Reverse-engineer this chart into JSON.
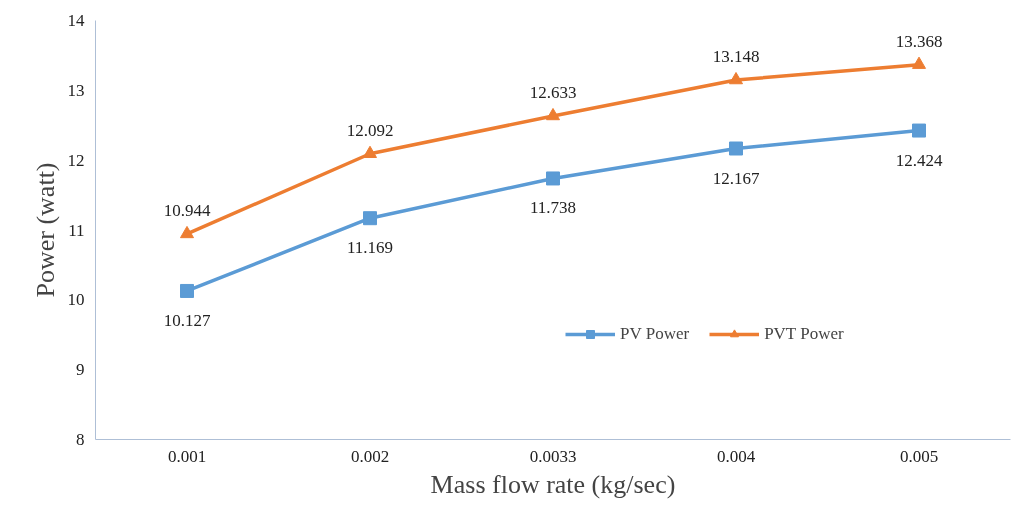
{
  "chart_data": {
    "type": "line",
    "xlabel": "Mass flow rate (kg/sec)",
    "ylabel": "Power (watt)",
    "categories": [
      "0.001",
      "0.002",
      "0.0033",
      "0.004",
      "0.005"
    ],
    "series": [
      {
        "name": "PV Power",
        "color": "#5b9bd5",
        "marker": "square",
        "values": [
          10.127,
          11.169,
          11.738,
          12.167,
          12.424
        ]
      },
      {
        "name": "PVT Power",
        "color": "#ed7d31",
        "marker": "triangle",
        "values": [
          10.944,
          12.092,
          12.633,
          13.148,
          13.368
        ]
      }
    ],
    "ylim": [
      8,
      14
    ],
    "yticks": [
      8,
      9,
      10,
      11,
      12,
      13,
      14
    ],
    "grid": false,
    "legend": "center",
    "data_labels": true
  }
}
